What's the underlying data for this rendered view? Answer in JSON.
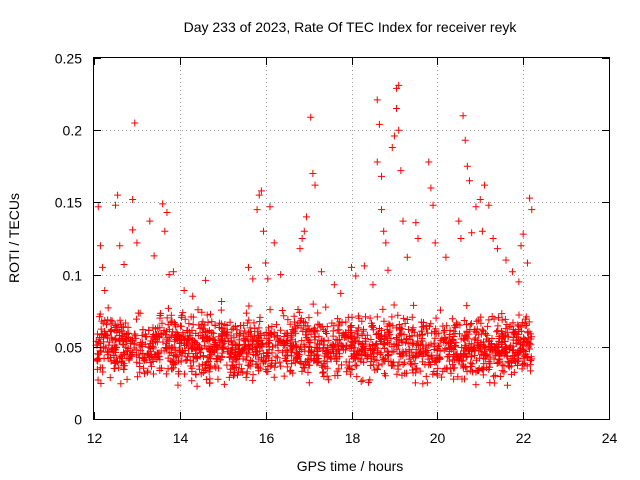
{
  "chart_data": {
    "type": "scatter",
    "title": "Day 233 of 2023, Rate Of TEC Index for receiver reyk",
    "xlabel": "GPS time / hours",
    "ylabel": "ROTI / TECUs",
    "xlim": [
      12,
      24
    ],
    "ylim": [
      0,
      0.25
    ],
    "xticks": [
      "12",
      "14",
      "16",
      "18",
      "20",
      "22",
      "24"
    ],
    "yticks": [
      "0",
      "0.05",
      "0.1",
      "0.15",
      "0.2",
      "0.25"
    ],
    "grid": true,
    "marker": "plus",
    "color": "#ff0000",
    "data_x_range": [
      12.05,
      22.2
    ],
    "baseline_band": [
      0.02,
      0.08
    ],
    "series": [
      {
        "points": [
          [
            12.1,
            0.147
          ],
          [
            12.15,
            0.12
          ],
          [
            12.2,
            0.105
          ],
          [
            12.25,
            0.089
          ],
          [
            12.5,
            0.148
          ],
          [
            12.55,
            0.155
          ],
          [
            12.6,
            0.12
          ],
          [
            12.7,
            0.107
          ],
          [
            12.9,
            0.152
          ],
          [
            12.95,
            0.205
          ],
          [
            12.9,
            0.131
          ],
          [
            13.0,
            0.122
          ],
          [
            13.3,
            0.137
          ],
          [
            13.4,
            0.113
          ],
          [
            13.6,
            0.149
          ],
          [
            13.7,
            0.143
          ],
          [
            13.65,
            0.13
          ],
          [
            13.75,
            0.1
          ],
          [
            13.85,
            0.102
          ],
          [
            14.1,
            0.089
          ],
          [
            14.3,
            0.085
          ],
          [
            14.6,
            0.096
          ],
          [
            15.6,
            0.105
          ],
          [
            15.7,
            0.097
          ],
          [
            15.8,
            0.145
          ],
          [
            15.85,
            0.155
          ],
          [
            15.9,
            0.158
          ],
          [
            15.95,
            0.13
          ],
          [
            16.0,
            0.108
          ],
          [
            16.05,
            0.097
          ],
          [
            16.1,
            0.147
          ],
          [
            16.2,
            0.122
          ],
          [
            16.35,
            0.1
          ],
          [
            16.8,
            0.118
          ],
          [
            16.85,
            0.125
          ],
          [
            16.9,
            0.13
          ],
          [
            16.95,
            0.14
          ],
          [
            17.05,
            0.209
          ],
          [
            17.1,
            0.17
          ],
          [
            17.15,
            0.162
          ],
          [
            17.3,
            0.102
          ],
          [
            17.6,
            0.093
          ],
          [
            17.75,
            0.087
          ],
          [
            18.0,
            0.105
          ],
          [
            18.1,
            0.099
          ],
          [
            18.3,
            0.106
          ],
          [
            18.5,
            0.093
          ],
          [
            18.6,
            0.221
          ],
          [
            18.65,
            0.204
          ],
          [
            18.6,
            0.178
          ],
          [
            18.7,
            0.168
          ],
          [
            18.7,
            0.145
          ],
          [
            18.75,
            0.13
          ],
          [
            18.8,
            0.122
          ],
          [
            18.85,
            0.103
          ],
          [
            18.95,
            0.188
          ],
          [
            19.0,
            0.196
          ],
          [
            19.05,
            0.215
          ],
          [
            19.05,
            0.229
          ],
          [
            19.1,
            0.231
          ],
          [
            19.1,
            0.2
          ],
          [
            19.15,
            0.172
          ],
          [
            19.2,
            0.137
          ],
          [
            19.3,
            0.112
          ],
          [
            19.5,
            0.136
          ],
          [
            19.55,
            0.125
          ],
          [
            19.8,
            0.178
          ],
          [
            19.85,
            0.16
          ],
          [
            19.9,
            0.148
          ],
          [
            19.95,
            0.122
          ],
          [
            20.2,
            0.112
          ],
          [
            20.5,
            0.137
          ],
          [
            20.55,
            0.125
          ],
          [
            20.6,
            0.21
          ],
          [
            20.65,
            0.193
          ],
          [
            20.7,
            0.175
          ],
          [
            20.75,
            0.165
          ],
          [
            20.8,
            0.129
          ],
          [
            20.9,
            0.147
          ],
          [
            21.0,
            0.152
          ],
          [
            21.05,
            0.13
          ],
          [
            21.1,
            0.162
          ],
          [
            21.2,
            0.148
          ],
          [
            21.3,
            0.125
          ],
          [
            21.4,
            0.118
          ],
          [
            21.6,
            0.11
          ],
          [
            21.75,
            0.102
          ],
          [
            21.9,
            0.095
          ],
          [
            21.95,
            0.12
          ],
          [
            22.0,
            0.128
          ],
          [
            22.1,
            0.108
          ],
          [
            22.15,
            0.153
          ],
          [
            22.2,
            0.145
          ]
        ]
      }
    ]
  }
}
